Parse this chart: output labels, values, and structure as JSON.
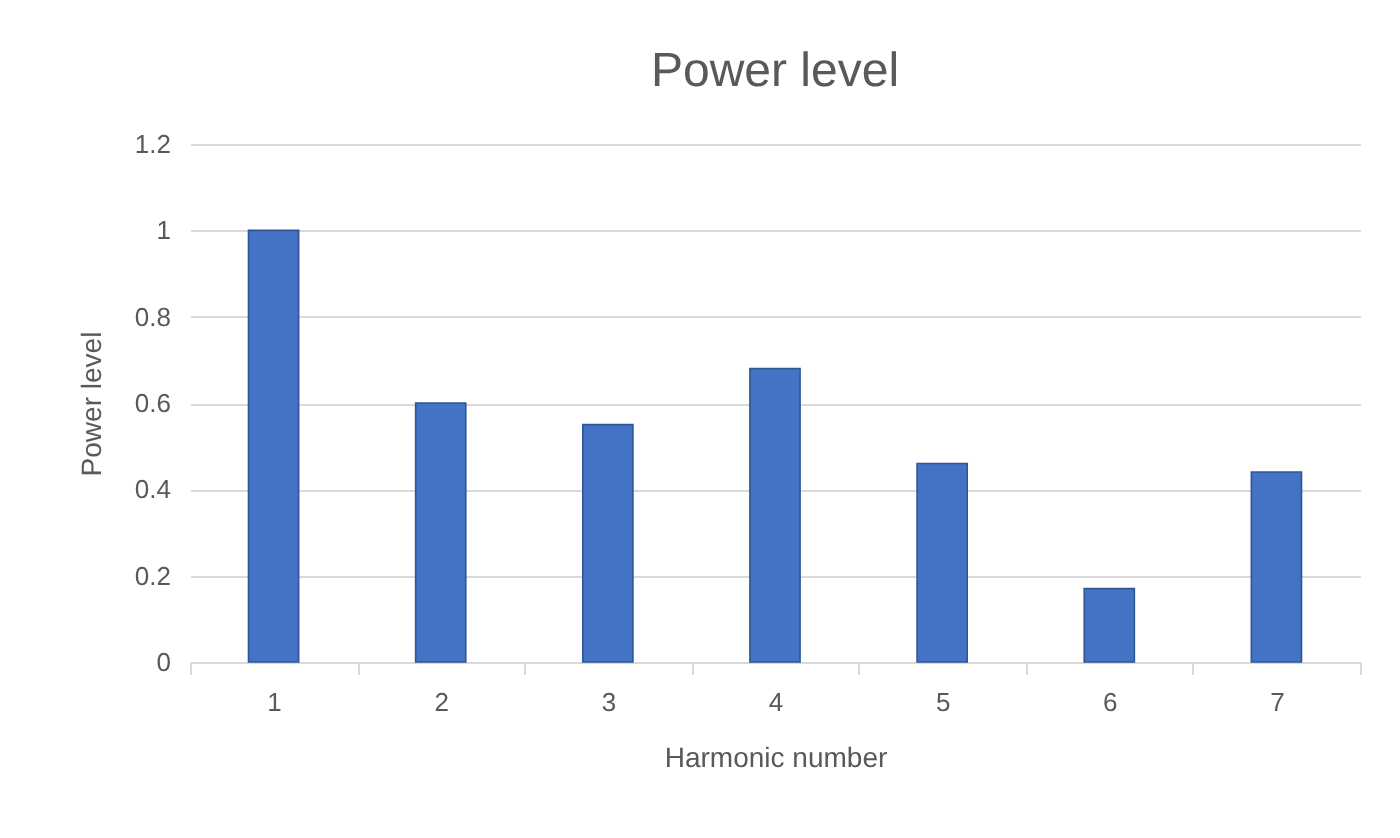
{
  "chart_data": {
    "type": "bar",
    "title": "Power level",
    "xlabel": "Harmonic number",
    "ylabel": "Power level",
    "categories": [
      "1",
      "2",
      "3",
      "4",
      "5",
      "6",
      "7"
    ],
    "values": [
      1.0,
      0.6,
      0.55,
      0.68,
      0.46,
      0.17,
      0.44
    ],
    "color": "#4472c4",
    "ylim": [
      0,
      1.2
    ],
    "yticks": [
      0,
      0.2,
      0.4,
      0.6,
      0.8,
      1,
      1.2
    ],
    "grid": "y"
  }
}
